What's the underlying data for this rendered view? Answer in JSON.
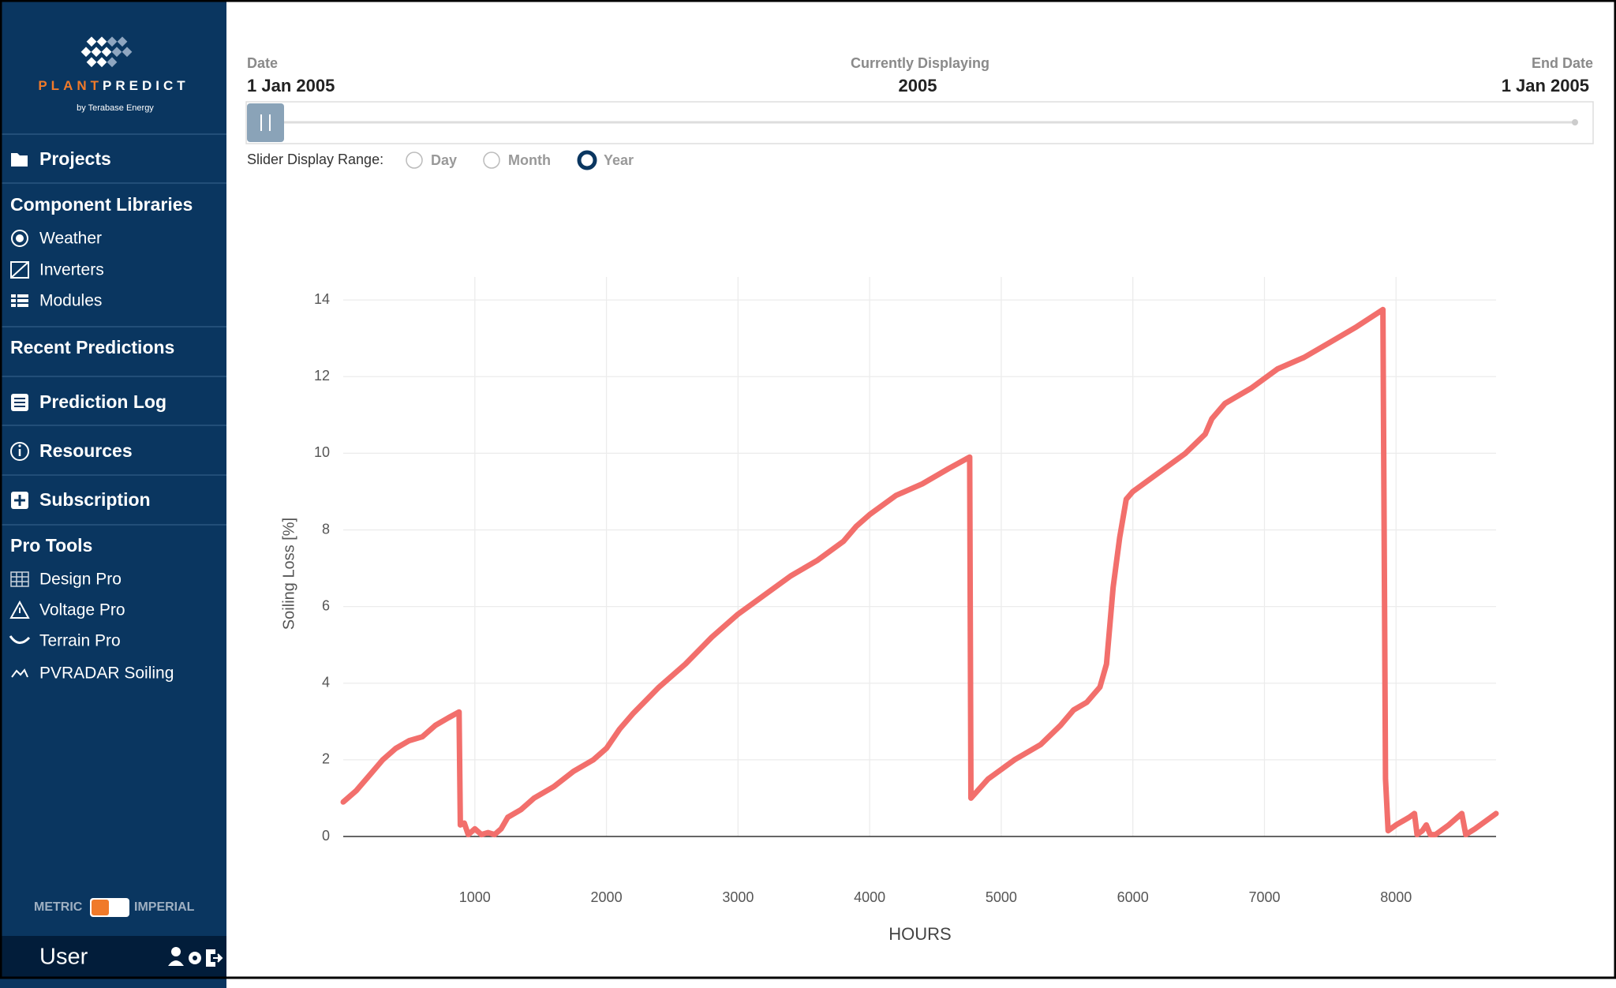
{
  "sidebar": {
    "brand_primary": "PLANT",
    "brand_secondary": "PREDICT",
    "brand_tagline": "by Terabase Energy",
    "projects": "Projects",
    "component_libraries": {
      "title": "Component Libraries",
      "items": [
        "Weather",
        "Inverters",
        "Modules"
      ]
    },
    "recent_predictions": "Recent Predictions",
    "prediction_log": "Prediction Log",
    "resources": "Resources",
    "subscription": "Subscription",
    "pro_tools": {
      "title": "Pro Tools",
      "items": [
        "Design Pro",
        "Voltage Pro",
        "Terrain Pro",
        "PVRADAR Soiling"
      ]
    },
    "units": {
      "left": "METRIC",
      "right": "IMPERIAL"
    },
    "user": "User"
  },
  "header": {
    "date_label": "Date",
    "date": "1 Jan 2005",
    "displaying_label": "Currently Displaying",
    "displaying": "2005",
    "end_label": "End Date",
    "end": "1 Jan 2005"
  },
  "range": {
    "label": "Slider Display Range:",
    "options": [
      "Day",
      "Month",
      "Year"
    ],
    "selected": 2
  },
  "chart_data": {
    "type": "line",
    "xlabel": "HOURS",
    "ylabel": "Soiling Loss [%]",
    "color": "#f26f6c",
    "x": [
      0,
      100,
      200,
      300,
      400,
      500,
      600,
      700,
      800,
      880,
      890,
      920,
      950,
      1000,
      1050,
      1100,
      1150,
      1200,
      1250,
      1350,
      1450,
      1600,
      1750,
      1900,
      2000,
      2100,
      2200,
      2400,
      2600,
      2800,
      3000,
      3200,
      3400,
      3600,
      3800,
      3900,
      4000,
      4200,
      4400,
      4600,
      4760,
      4770,
      4900,
      5100,
      5300,
      5450,
      5550,
      5650,
      5750,
      5800,
      5850,
      5900,
      5950,
      6000,
      6200,
      6400,
      6550,
      6600,
      6700,
      6900,
      7100,
      7300,
      7500,
      7700,
      7900,
      7920,
      7940,
      8000,
      8100,
      8140,
      8160,
      8200,
      8230,
      8260,
      8300,
      8400,
      8500,
      8530,
      8600,
      8760
    ],
    "values": [
      0.9,
      1.2,
      1.6,
      2.0,
      2.3,
      2.5,
      2.6,
      2.9,
      3.1,
      3.25,
      0.3,
      0.35,
      0.05,
      0.2,
      0.05,
      0.1,
      0.05,
      0.2,
      0.5,
      0.7,
      1.0,
      1.3,
      1.7,
      2.0,
      2.3,
      2.8,
      3.2,
      3.9,
      4.5,
      5.2,
      5.8,
      6.3,
      6.8,
      7.2,
      7.7,
      8.1,
      8.4,
      8.9,
      9.2,
      9.6,
      9.9,
      1.0,
      1.5,
      2.0,
      2.4,
      2.9,
      3.3,
      3.5,
      3.9,
      4.5,
      6.5,
      7.8,
      8.8,
      9.0,
      9.5,
      10.0,
      10.5,
      10.9,
      11.3,
      11.7,
      12.2,
      12.5,
      12.9,
      13.3,
      13.75,
      1.5,
      0.15,
      0.3,
      0.5,
      0.6,
      0.05,
      0.15,
      0.3,
      0.05,
      0.05,
      0.3,
      0.6,
      0.05,
      0.2,
      0.6
    ],
    "xlim": [
      0,
      8760
    ],
    "ylim": [
      0,
      14.6
    ],
    "xticks": [
      1000,
      2000,
      3000,
      4000,
      5000,
      6000,
      7000,
      8000
    ],
    "yticks": [
      0,
      2,
      4,
      6,
      8,
      10,
      12,
      14
    ],
    "grid": true
  }
}
